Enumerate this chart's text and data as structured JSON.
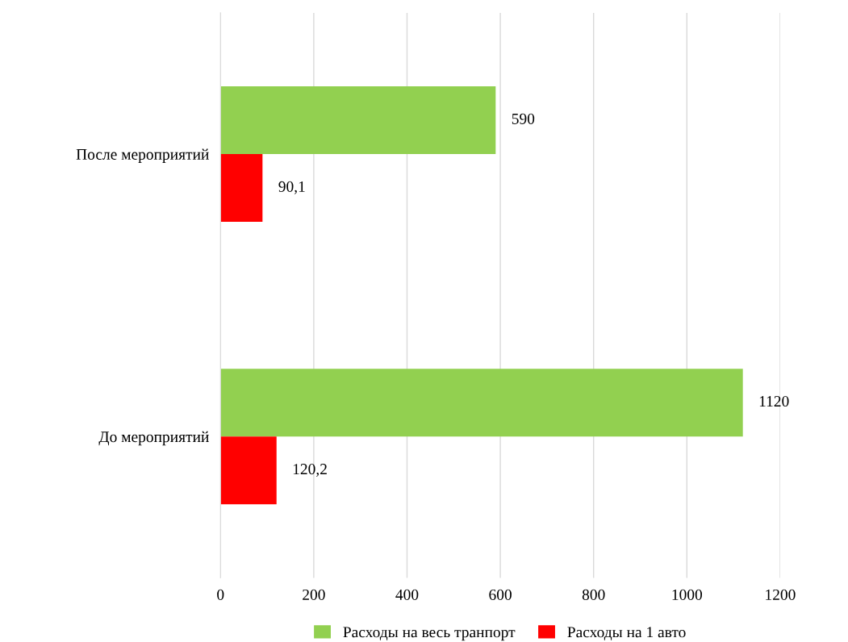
{
  "chart_data": {
    "type": "bar",
    "orientation": "horizontal",
    "categories": [
      "После мероприятий",
      "До мероприятий"
    ],
    "series": [
      {
        "name": "Расходы на весь транпорт",
        "color": "#92d050",
        "values": [
          590,
          1120
        ],
        "value_labels": [
          "590",
          "1120"
        ]
      },
      {
        "name": "Расходы на 1 авто",
        "color": "#ff0000",
        "values": [
          90.1,
          120.2
        ],
        "value_labels": [
          "90,1",
          "120,2"
        ]
      }
    ],
    "xlim": [
      0,
      1200
    ],
    "xticks": [
      0,
      200,
      400,
      600,
      800,
      1000,
      1200
    ],
    "grid": "x",
    "legend": "bottom"
  }
}
